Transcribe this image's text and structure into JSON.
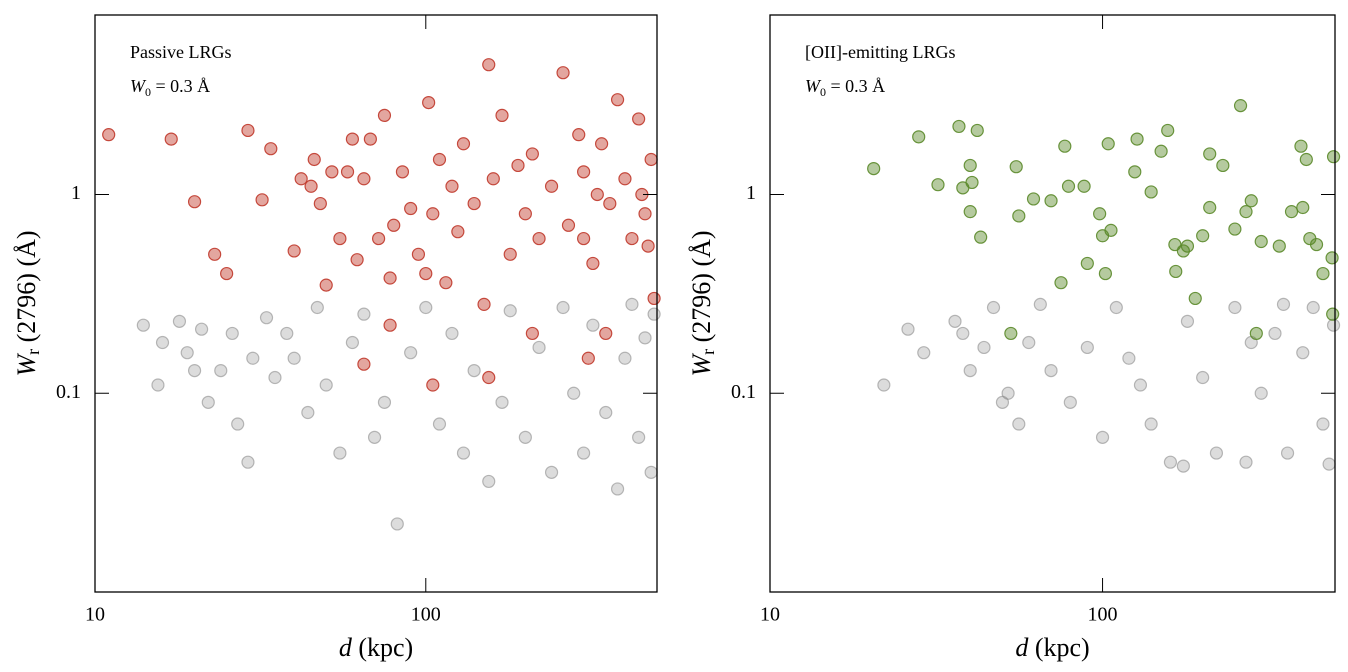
{
  "chart_data": [
    {
      "type": "scatter",
      "log_x": true,
      "log_y": true,
      "annotation": "Passive LRGs",
      "w0_label": [
        "W",
        "0",
        " = 0.3 Å"
      ],
      "xlabel": [
        "d",
        " (kpc)"
      ],
      "ylabel": [
        "W",
        "r",
        " (2796)  (Å)"
      ],
      "xlim": [
        10,
        500
      ],
      "ylim": [
        0.01,
        8
      ],
      "xticks": [
        10,
        100
      ],
      "yticks": [
        0.1,
        1
      ],
      "series": [
        {
          "color": "#c0392b",
          "x": [
            11,
            17,
            20,
            23,
            25,
            29,
            32,
            34,
            40,
            42,
            45,
            46,
            48,
            50,
            52,
            55,
            58,
            60,
            62,
            65,
            68,
            72,
            75,
            78,
            80,
            85,
            90,
            95,
            100,
            102,
            105,
            110,
            115,
            120,
            125,
            130,
            140,
            150,
            155,
            160,
            170,
            180,
            190,
            200,
            210,
            220,
            240,
            260,
            270,
            290,
            300,
            320,
            340,
            360,
            380,
            400,
            420,
            440,
            460,
            480,
            490,
            350,
            310,
            155,
            105,
            65,
            78,
            210,
            300,
            330,
            450,
            470
          ],
          "values": [
            2.0,
            1.9,
            0.92,
            0.5,
            0.4,
            2.1,
            0.94,
            1.7,
            0.52,
            1.2,
            1.1,
            1.5,
            0.9,
            0.35,
            1.3,
            0.6,
            1.3,
            1.9,
            0.47,
            1.2,
            1.9,
            0.6,
            2.5,
            0.38,
            0.7,
            1.3,
            0.85,
            0.5,
            0.4,
            2.9,
            0.8,
            1.5,
            0.36,
            1.1,
            0.65,
            1.8,
            0.9,
            0.28,
            4.5,
            1.2,
            2.5,
            0.5,
            1.4,
            0.8,
            1.6,
            0.6,
            1.1,
            4.1,
            0.7,
            2.0,
            1.3,
            0.45,
            1.8,
            0.9,
            3.0,
            1.2,
            0.6,
            2.4,
            0.8,
            1.5,
            0.3,
            0.2,
            0.15,
            0.12,
            0.11,
            0.14,
            0.22,
            0.2,
            0.6,
            1.0,
            1.0,
            0.55
          ]
        },
        {
          "color": "#8c8c8c",
          "x": [
            14,
            16,
            15.5,
            18,
            19,
            20,
            21,
            22,
            24,
            26,
            27,
            29,
            30,
            33,
            35,
            38,
            40,
            44,
            47,
            50,
            55,
            60,
            65,
            70,
            75,
            82,
            90,
            100,
            110,
            120,
            130,
            140,
            155,
            170,
            180,
            200,
            220,
            240,
            260,
            280,
            300,
            320,
            350,
            380,
            400,
            420,
            440,
            460,
            480,
            490
          ],
          "values": [
            0.22,
            0.18,
            0.11,
            0.23,
            0.16,
            0.13,
            0.21,
            0.09,
            0.13,
            0.2,
            0.07,
            0.045,
            0.15,
            0.24,
            0.12,
            0.2,
            0.15,
            0.08,
            0.27,
            0.11,
            0.05,
            0.18,
            0.25,
            0.06,
            0.09,
            0.022,
            0.16,
            0.27,
            0.07,
            0.2,
            0.05,
            0.13,
            0.036,
            0.09,
            0.26,
            0.06,
            0.17,
            0.04,
            0.27,
            0.1,
            0.05,
            0.22,
            0.08,
            0.033,
            0.15,
            0.28,
            0.06,
            0.19,
            0.04,
            0.25
          ]
        }
      ]
    },
    {
      "type": "scatter",
      "log_x": true,
      "log_y": true,
      "annotation": "[OII]-emitting LRGs",
      "w0_label": [
        "W",
        "0",
        " = 0.3 Å"
      ],
      "xlabel": [
        "d",
        " (kpc)"
      ],
      "ylabel": [
        "W",
        "r",
        " (2796)  (Å)"
      ],
      "xlim": [
        10,
        500
      ],
      "ylim": [
        0.01,
        8
      ],
      "xticks": [
        10,
        100
      ],
      "yticks": [
        0.1,
        1
      ],
      "series": [
        {
          "color": "#5b8a2a",
          "x": [
            20.5,
            28,
            32,
            37,
            38,
            40,
            40.5,
            40,
            42,
            43,
            53,
            55,
            56,
            62,
            70,
            75,
            77,
            79,
            88,
            90,
            98,
            100,
            102,
            104,
            106,
            125,
            127,
            140,
            150,
            157,
            165,
            166,
            175,
            180,
            190,
            200,
            210,
            210,
            230,
            250,
            260,
            270,
            280,
            290,
            300,
            340,
            370,
            395,
            400,
            410,
            420,
            440,
            460,
            490,
            495,
            492
          ],
          "values": [
            1.35,
            1.95,
            1.12,
            2.2,
            1.08,
            1.4,
            1.15,
            0.82,
            2.1,
            0.61,
            0.2,
            1.38,
            0.78,
            0.95,
            0.93,
            0.36,
            1.75,
            1.1,
            1.1,
            0.45,
            0.8,
            0.62,
            0.4,
            1.8,
            0.66,
            1.3,
            1.9,
            1.03,
            1.65,
            2.1,
            0.56,
            0.41,
            0.52,
            0.55,
            0.3,
            0.62,
            1.6,
            0.86,
            1.4,
            0.67,
            2.8,
            0.82,
            0.93,
            0.2,
            0.58,
            0.55,
            0.82,
            1.75,
            0.86,
            1.5,
            0.6,
            0.56,
            0.4,
            0.48,
            1.55,
            0.25
          ]
        },
        {
          "color": "#8c8c8c",
          "x": [
            22,
            26,
            29,
            36,
            38,
            40,
            44,
            47,
            50,
            52,
            56,
            60,
            65,
            70,
            80,
            90,
            100,
            110,
            120,
            130,
            140,
            160,
            175,
            180,
            200,
            220,
            250,
            270,
            300,
            330,
            360,
            400,
            430,
            460,
            480,
            495,
            350,
            280
          ],
          "values": [
            0.11,
            0.21,
            0.16,
            0.23,
            0.2,
            0.13,
            0.17,
            0.27,
            0.09,
            0.1,
            0.07,
            0.18,
            0.28,
            0.13,
            0.09,
            0.17,
            0.06,
            0.27,
            0.15,
            0.11,
            0.07,
            0.045,
            0.043,
            0.23,
            0.12,
            0.05,
            0.27,
            0.045,
            0.1,
            0.2,
            0.05,
            0.16,
            0.27,
            0.07,
            0.044,
            0.22,
            0.28,
            0.18
          ]
        }
      ]
    }
  ]
}
